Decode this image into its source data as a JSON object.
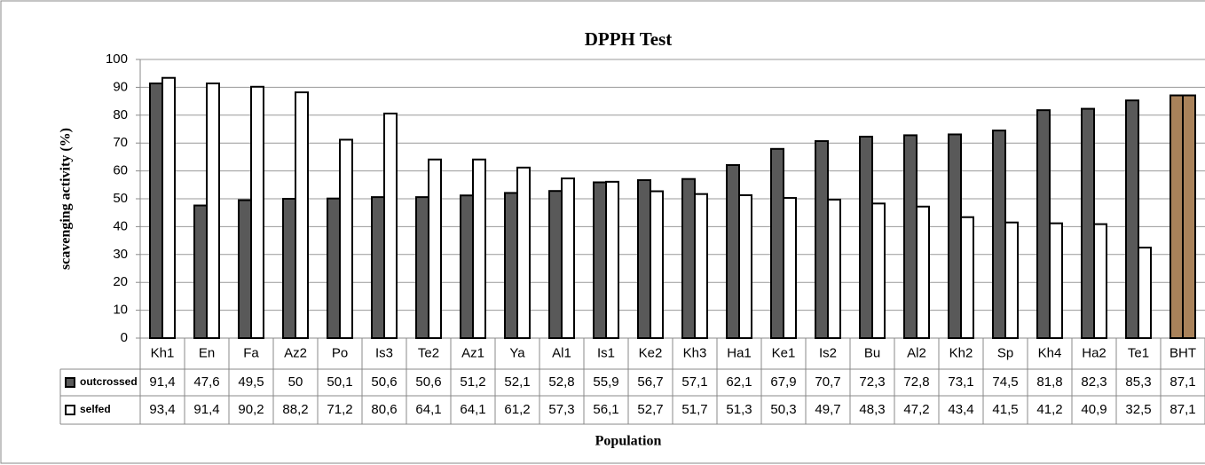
{
  "chart_data": {
    "type": "bar",
    "title": "DPPH Test",
    "y_label": "scavenging activity (%)",
    "x_label": "Population",
    "categories": [
      "Kh1",
      "En",
      "Fa",
      "Az2",
      "Po",
      "Is3",
      "Te2",
      "Az1",
      "Ya",
      "Al1",
      "Is1",
      "Ke2",
      "Kh3",
      "Ha1",
      "Ke1",
      "Is2",
      "Bu",
      "Al2",
      "Kh2",
      "Sp",
      "Kh4",
      "Ha2",
      "Te1",
      "BHT"
    ],
    "series": [
      {
        "name": "outcrossed",
        "color": "#595959",
        "colors": [
          "#595959",
          "#595959",
          "#595959",
          "#595959",
          "#595959",
          "#595959",
          "#595959",
          "#595959",
          "#595959",
          "#595959",
          "#595959",
          "#595959",
          "#595959",
          "#595959",
          "#595959",
          "#595959",
          "#595959",
          "#595959",
          "#595959",
          "#595959",
          "#595959",
          "#595959",
          "#595959",
          "#a9825a"
        ],
        "values": [
          91.4,
          47.6,
          49.5,
          50,
          50.1,
          50.6,
          50.6,
          51.2,
          52.1,
          52.8,
          55.9,
          56.7,
          57.1,
          62.1,
          67.9,
          70.7,
          72.3,
          72.8,
          73.1,
          74.5,
          81.8,
          82.3,
          85.3,
          87.1
        ],
        "value_labels": [
          "91,4",
          "47,6",
          "49,5",
          "50",
          "50,1",
          "50,6",
          "50,6",
          "51,2",
          "52,1",
          "52,8",
          "55,9",
          "56,7",
          "57,1",
          "62,1",
          "67,9",
          "70,7",
          "72,3",
          "72,8",
          "73,1",
          "74,5",
          "81,8",
          "82,3",
          "85,3",
          "87,1"
        ]
      },
      {
        "name": "selfed",
        "color": "#ffffff",
        "colors": [
          "#ffffff",
          "#ffffff",
          "#ffffff",
          "#ffffff",
          "#ffffff",
          "#ffffff",
          "#ffffff",
          "#ffffff",
          "#ffffff",
          "#ffffff",
          "#ffffff",
          "#ffffff",
          "#ffffff",
          "#ffffff",
          "#ffffff",
          "#ffffff",
          "#ffffff",
          "#ffffff",
          "#ffffff",
          "#ffffff",
          "#ffffff",
          "#ffffff",
          "#ffffff",
          "#a9825a"
        ],
        "values": [
          93.4,
          91.4,
          90.2,
          88.2,
          71.2,
          80.6,
          64.1,
          64.1,
          61.2,
          57.3,
          56.1,
          52.7,
          51.7,
          51.3,
          50.3,
          49.7,
          48.3,
          47.2,
          43.4,
          41.5,
          41.2,
          40.9,
          32.5,
          87.1
        ],
        "value_labels": [
          "93,4",
          "91,4",
          "90,2",
          "88,2",
          "71,2",
          "80,6",
          "64,1",
          "64,1",
          "61,2",
          "57,3",
          "56,1",
          "52,7",
          "51,7",
          "51,3",
          "50,3",
          "49,7",
          "48,3",
          "47,2",
          "43,4",
          "41,5",
          "41,2",
          "40,9",
          "32,5",
          "87,1"
        ]
      }
    ],
    "ylim": [
      0,
      100
    ],
    "yticks": [
      0,
      10,
      20,
      30,
      40,
      50,
      60,
      70,
      80,
      90,
      100
    ],
    "grid": true
  }
}
